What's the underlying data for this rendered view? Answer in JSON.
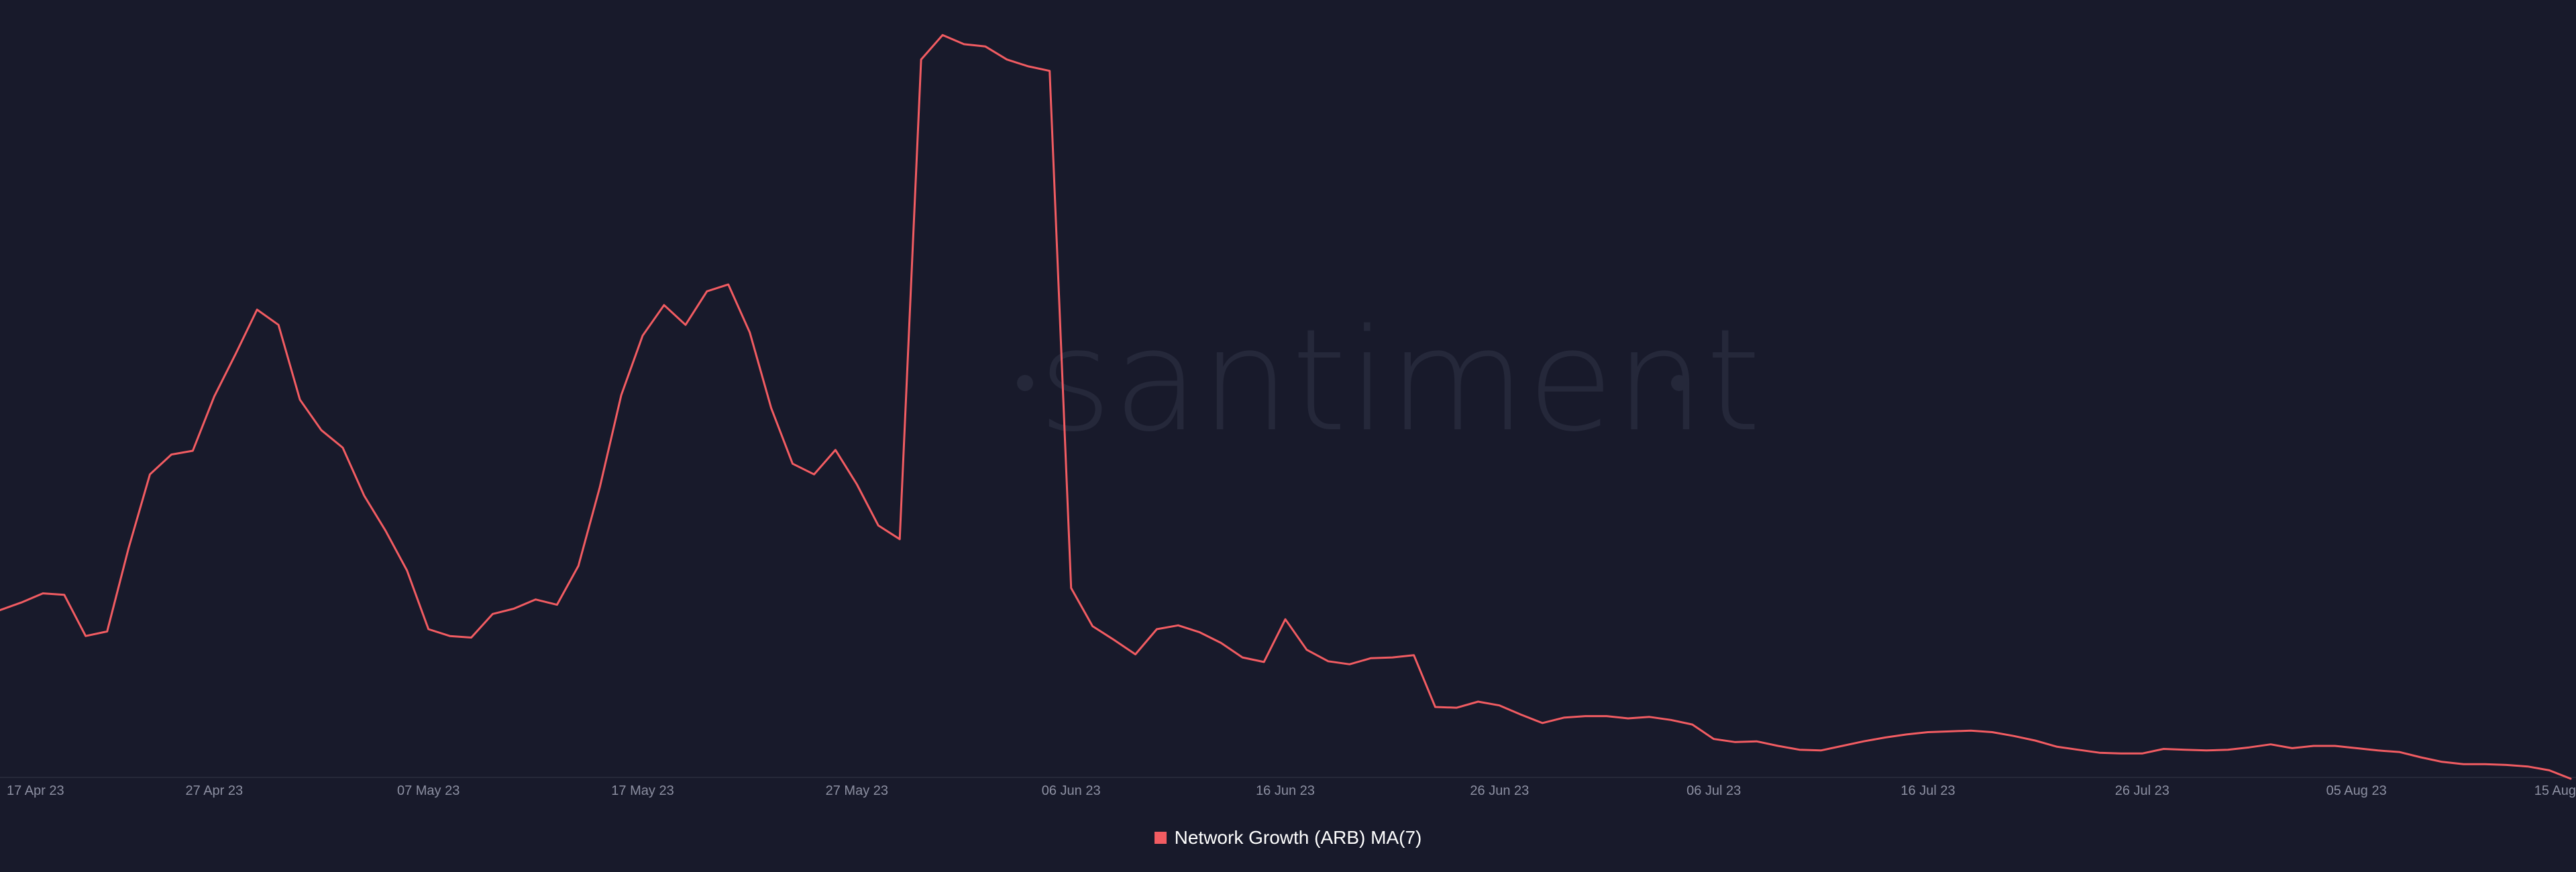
{
  "watermark": "santiment",
  "legend": {
    "label": "Network Growth (ARB) MA(7)",
    "color": "#f25c62"
  },
  "chart_data": {
    "type": "line",
    "title": "",
    "xlabel": "",
    "ylabel": "",
    "grid": false,
    "legend_position": "bottom-center",
    "x_tick_labels": [
      "17 Apr 23",
      "27 Apr 23",
      "07 May 23",
      "17 May 23",
      "27 May 23",
      "06 Jun 23",
      "16 Jun 23",
      "26 Jun 23",
      "06 Jul 23",
      "16 Jul 23",
      "26 Jul 23",
      "05 Aug 23",
      "15 Aug"
    ],
    "x_start": "2023-04-17",
    "x_end": "2023-08-15",
    "ylim": [
      0,
      100
    ],
    "series": [
      {
        "name": "Network Growth (ARB) MA(7)",
        "color": "#f25c62",
        "values": [
          22.2,
          23.2,
          24.4,
          24.2,
          18.8,
          19.4,
          30.3,
          40.0,
          42.6,
          43.1,
          50.2,
          55.8,
          61.6,
          59.6,
          49.8,
          45.8,
          43.5,
          37.2,
          32.6,
          27.4,
          19.7,
          18.8,
          18.6,
          21.7,
          22.4,
          23.6,
          22.9,
          28.0,
          38.3,
          50.4,
          58.2,
          62.2,
          59.6,
          64.0,
          64.9,
          58.6,
          48.7,
          41.4,
          40.0,
          43.2,
          38.7,
          33.3,
          31.5,
          94.4,
          97.6,
          96.4,
          96.1,
          94.4,
          93.5,
          92.9,
          25.1,
          20.1,
          18.3,
          16.4,
          19.7,
          20.2,
          19.3,
          17.9,
          16.0,
          15.4,
          21.0,
          17.0,
          15.5,
          15.1,
          15.9,
          16.0,
          16.3,
          9.5,
          9.4,
          10.2,
          9.7,
          8.5,
          7.4,
          8.1,
          8.3,
          8.3,
          8.0,
          8.2,
          7.8,
          7.2,
          5.3,
          4.9,
          5.0,
          4.4,
          3.9,
          3.8,
          4.4,
          5.0,
          5.5,
          5.9,
          6.2,
          6.3,
          6.4,
          6.2,
          5.7,
          5.1,
          4.3,
          3.9,
          3.5,
          3.4,
          3.4,
          4.0,
          3.9,
          3.8,
          3.9,
          4.2,
          4.6,
          4.1,
          4.4,
          4.4,
          4.1,
          3.8,
          3.6,
          2.9,
          2.3,
          2.0,
          2.0,
          1.9,
          1.7,
          1.2,
          0.1
        ]
      }
    ]
  }
}
